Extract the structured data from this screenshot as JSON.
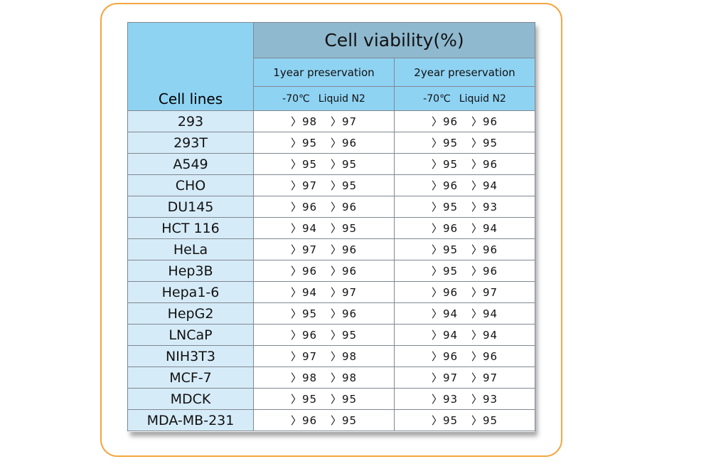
{
  "table": {
    "title": "Cell viability(%)",
    "col_header": "Cell lines",
    "groups": [
      {
        "label": "1year preservation",
        "conditions": [
          "-70℃",
          "Liquid N2"
        ]
      },
      {
        "label": "2year preservation",
        "conditions": [
          "-70℃",
          "Liquid N2"
        ]
      }
    ],
    "rows": [
      {
        "name": "293",
        "v": [
          "〉98",
          "〉97",
          "〉96",
          "〉96"
        ]
      },
      {
        "name": "293T",
        "v": [
          "〉95",
          "〉96",
          "〉95",
          "〉95"
        ]
      },
      {
        "name": "A549",
        "v": [
          "〉95",
          "〉95",
          "〉95",
          "〉96"
        ]
      },
      {
        "name": "CHO",
        "v": [
          "〉97",
          "〉95",
          "〉96",
          "〉94"
        ]
      },
      {
        "name": "DU145",
        "v": [
          "〉96",
          "〉96",
          "〉95",
          "〉93"
        ]
      },
      {
        "name": "HCT 116",
        "v": [
          "〉94",
          "〉95",
          "〉96",
          "〉94"
        ]
      },
      {
        "name": "HeLa",
        "v": [
          "〉97",
          "〉96",
          "〉95",
          "〉96"
        ]
      },
      {
        "name": "Hep3B",
        "v": [
          "〉96",
          "〉96",
          "〉95",
          "〉96"
        ]
      },
      {
        "name": "Hepa1-6",
        "v": [
          "〉94",
          "〉97",
          "〉96",
          "〉97"
        ]
      },
      {
        "name": "HepG2",
        "v": [
          "〉95",
          "〉96",
          "〉94",
          "〉94"
        ]
      },
      {
        "name": "LNCaP",
        "v": [
          "〉96",
          "〉95",
          "〉94",
          "〉94"
        ]
      },
      {
        "name": "NIH3T3",
        "v": [
          "〉97",
          "〉98",
          "〉96",
          "〉96"
        ]
      },
      {
        "name": "MCF-7",
        "v": [
          "〉98",
          "〉98",
          "〉97",
          "〉97"
        ]
      },
      {
        "name": "MDCK",
        "v": [
          "〉95",
          "〉95",
          "〉93",
          "〉93"
        ]
      },
      {
        "name": "MDA-MB-231",
        "v": [
          "〉96",
          "〉95",
          "〉95",
          "〉95"
        ]
      }
    ]
  }
}
